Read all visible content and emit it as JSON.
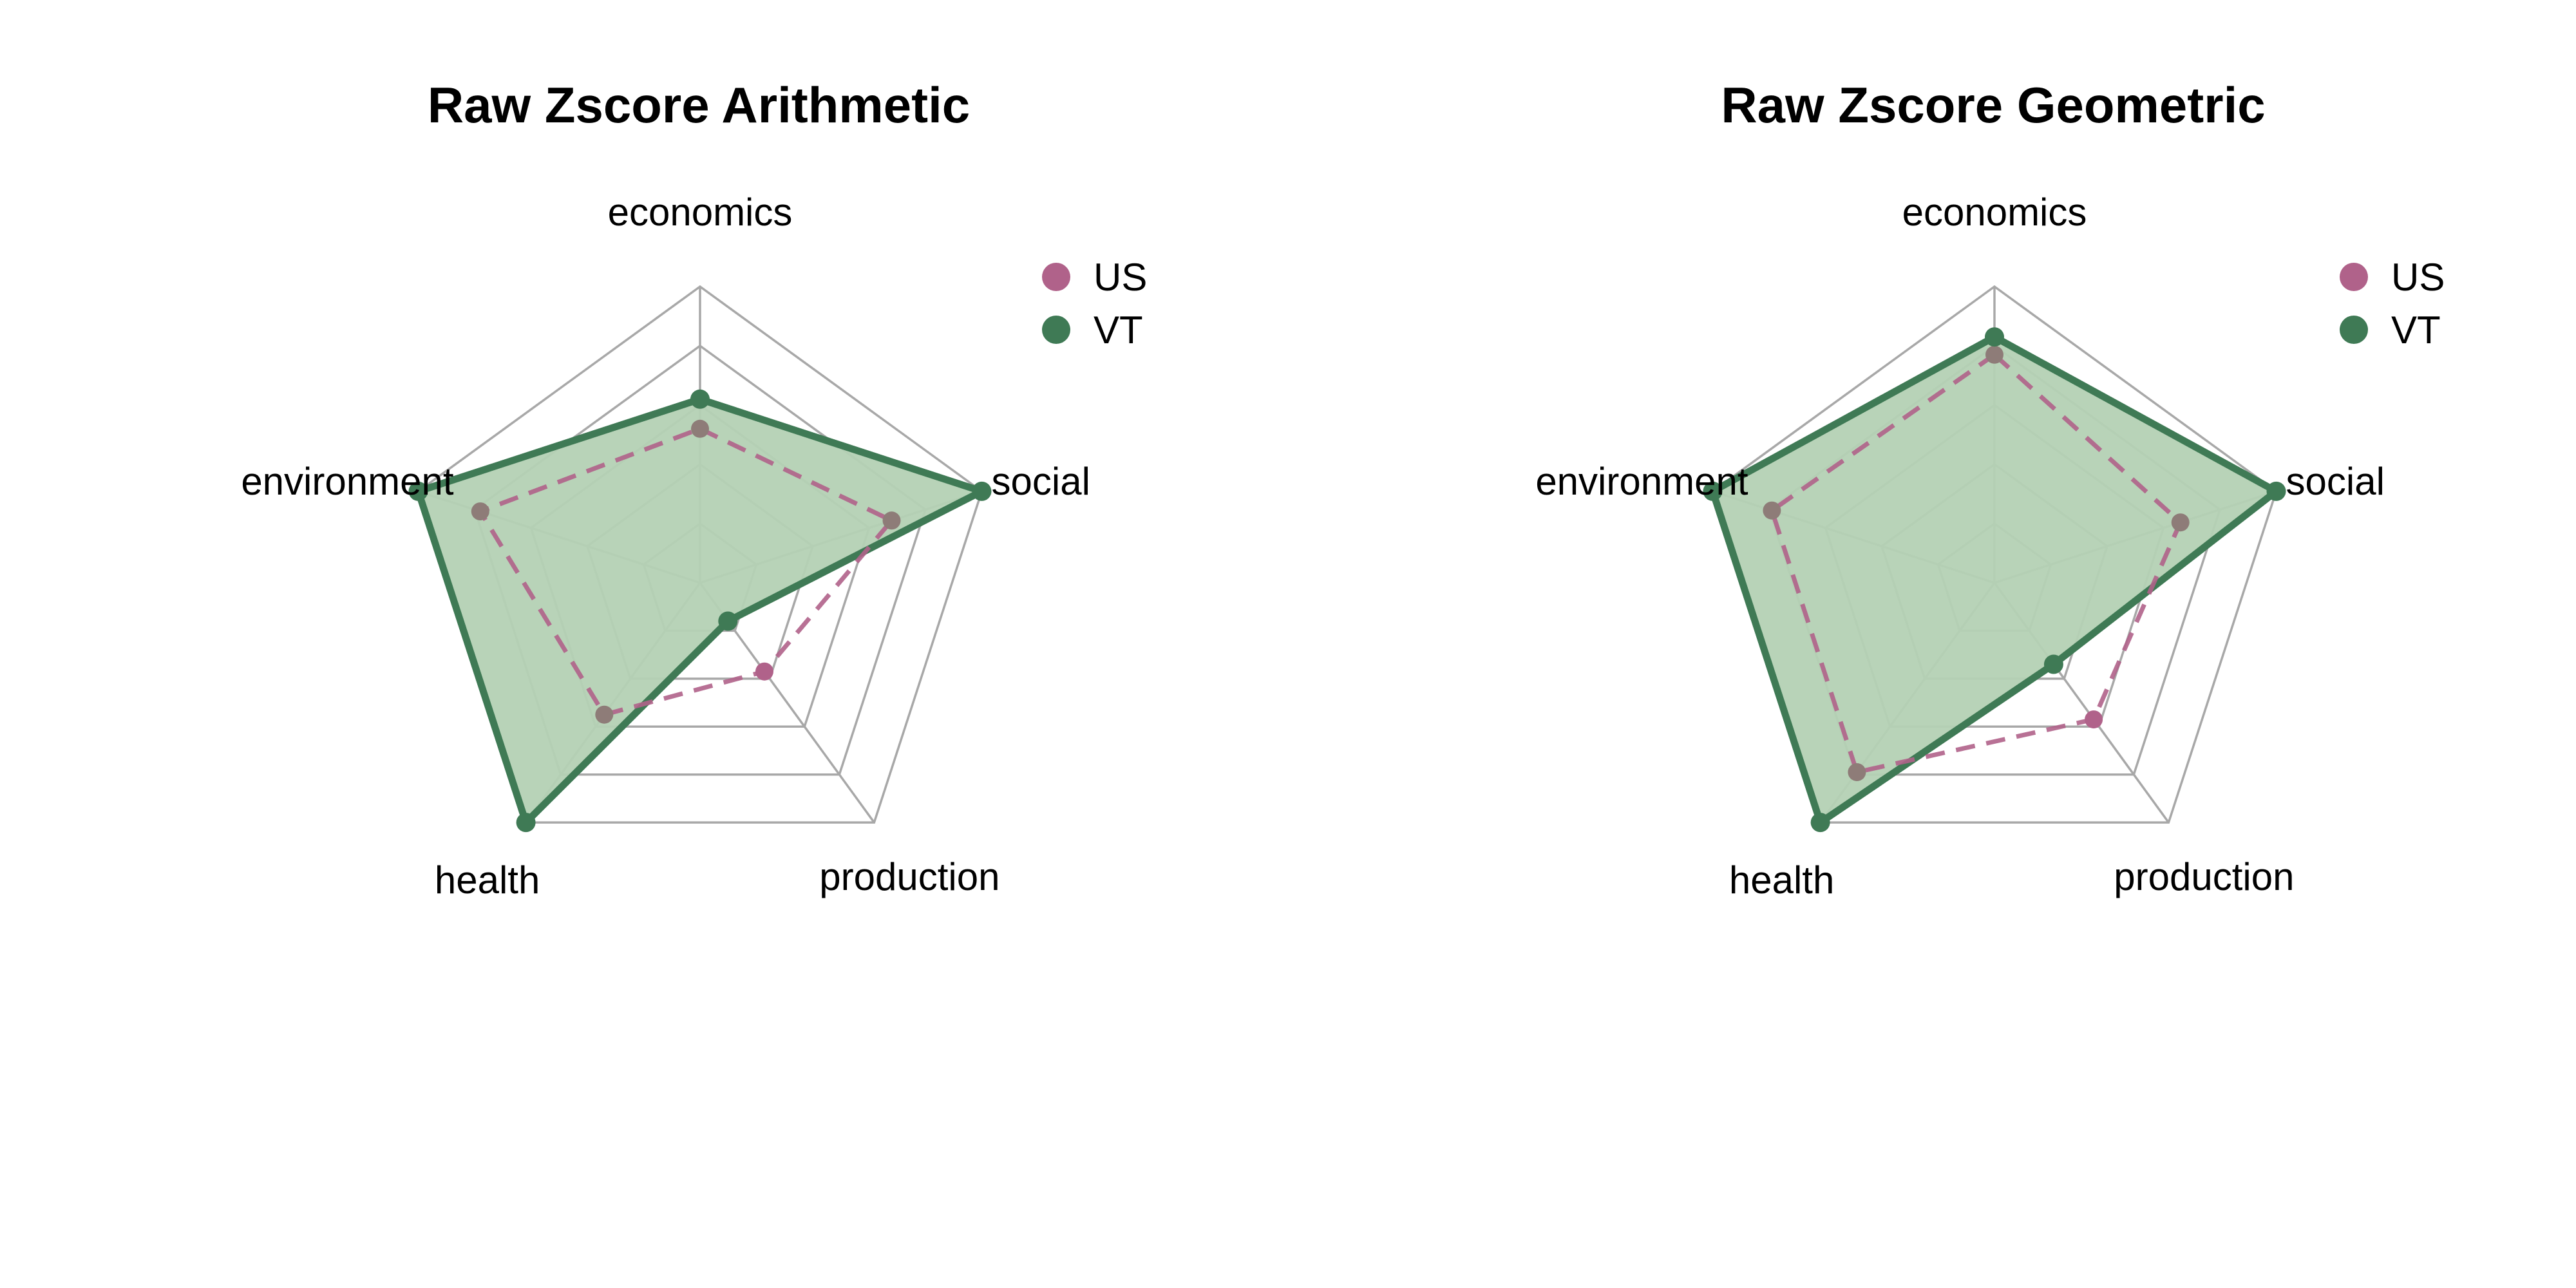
{
  "chart_data": [
    {
      "type": "radar",
      "title": "Raw Zscore Arithmetic",
      "axes": [
        "economics",
        "social",
        "production",
        "health",
        "environment"
      ],
      "rlim": [
        0,
        1
      ],
      "grid_levels": 5,
      "legend_position": "top-right",
      "series": [
        {
          "name": "US",
          "values": [
            0.52,
            0.68,
            0.37,
            0.55,
            0.78
          ],
          "color": "#b0628a",
          "style": "dashed"
        },
        {
          "name": "VT",
          "values": [
            0.62,
            1.0,
            0.16,
            1.0,
            1.0
          ],
          "color": "#3f7a55",
          "style": "solid-filled"
        }
      ]
    },
    {
      "type": "radar",
      "title": "Raw Zscore Geometric",
      "axes": [
        "economics",
        "social",
        "production",
        "health",
        "environment"
      ],
      "rlim": [
        0,
        1
      ],
      "grid_levels": 5,
      "legend_position": "top-right",
      "series": [
        {
          "name": "US",
          "values": [
            0.77,
            0.66,
            0.57,
            0.79,
            0.79
          ],
          "color": "#b0628a",
          "style": "dashed"
        },
        {
          "name": "VT",
          "values": [
            0.83,
            1.0,
            0.34,
            1.0,
            1.0
          ],
          "color": "#3f7a55",
          "style": "solid-filled"
        }
      ]
    }
  ],
  "colors": {
    "us": "#b0628a",
    "vt": "#3f7a55",
    "vt_fill": "#b4d1b4",
    "grid": "#a8a8a8"
  }
}
